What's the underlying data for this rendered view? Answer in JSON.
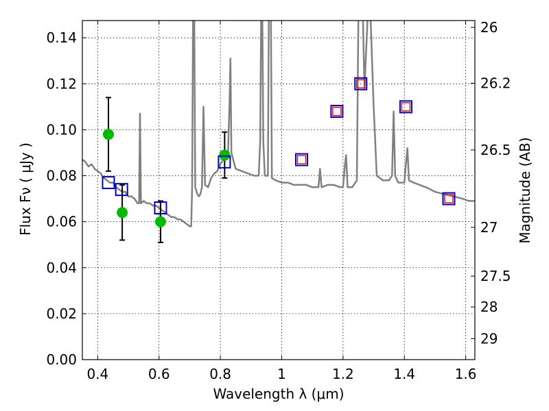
{
  "chart_data": {
    "type": "scatter",
    "xlabel": "Wavelength  λ (μm)",
    "ylabel": "Flux  Fν  ( μJy )",
    "ylabel_right": "Magnitude (AB)",
    "xlim": [
      0.35,
      1.63
    ],
    "ylim": [
      0.0,
      0.1475
    ],
    "grid": true,
    "x_ticks": [
      0.4,
      0.6,
      0.8,
      1.0,
      1.2,
      1.4,
      1.6
    ],
    "x_tick_labels": [
      "0.4",
      "0.6",
      "0.8",
      "1",
      "1.2",
      "1.4",
      "1.6"
    ],
    "y_ticks": [
      0.0,
      0.02,
      0.04,
      0.06,
      0.08,
      0.1,
      0.12,
      0.14
    ],
    "y_tick_labels": [
      "0.00",
      "0.02",
      "0.04",
      "0.06",
      "0.08",
      "0.10",
      "0.12",
      "0.14"
    ],
    "right_ticks": [
      {
        "mag": 26,
        "label": "26"
      },
      {
        "mag": 26.2,
        "label": "26.2"
      },
      {
        "mag": 26.5,
        "label": "26.5"
      },
      {
        "mag": 27,
        "label": "27"
      },
      {
        "mag": 27.5,
        "label": "27.5"
      },
      {
        "mag": 28,
        "label": "28"
      },
      {
        "mag": 29,
        "label": "29"
      }
    ],
    "series": [
      {
        "style": "line",
        "color": "#808080",
        "points": [
          [
            0.35,
            0.087
          ],
          [
            0.36,
            0.086
          ],
          [
            0.37,
            0.084
          ],
          [
            0.38,
            0.085
          ],
          [
            0.39,
            0.083
          ],
          [
            0.4,
            0.082
          ],
          [
            0.41,
            0.081
          ],
          [
            0.42,
            0.079
          ],
          [
            0.43,
            0.078
          ],
          [
            0.44,
            0.077
          ],
          [
            0.45,
            0.077
          ],
          [
            0.46,
            0.075
          ],
          [
            0.47,
            0.074
          ],
          [
            0.48,
            0.073
          ],
          [
            0.49,
            0.073
          ],
          [
            0.5,
            0.071
          ],
          [
            0.51,
            0.071
          ],
          [
            0.52,
            0.07
          ],
          [
            0.53,
            0.068
          ],
          [
            0.535,
            0.068
          ],
          [
            0.538,
            0.107
          ],
          [
            0.541,
            0.068
          ],
          [
            0.55,
            0.069
          ],
          [
            0.56,
            0.068
          ],
          [
            0.57,
            0.068
          ],
          [
            0.58,
            0.067
          ],
          [
            0.59,
            0.067
          ],
          [
            0.6,
            0.066
          ],
          [
            0.61,
            0.065
          ],
          [
            0.62,
            0.064
          ],
          [
            0.63,
            0.063
          ],
          [
            0.64,
            0.062
          ],
          [
            0.65,
            0.062
          ],
          [
            0.66,
            0.061
          ],
          [
            0.67,
            0.061
          ],
          [
            0.68,
            0.06
          ],
          [
            0.69,
            0.059
          ],
          [
            0.7,
            0.058
          ],
          [
            0.705,
            0.058
          ],
          [
            0.708,
            0.075
          ],
          [
            0.711,
            0.148
          ],
          [
            0.715,
            0.148
          ],
          [
            0.718,
            0.075
          ],
          [
            0.725,
            0.072
          ],
          [
            0.73,
            0.071
          ],
          [
            0.735,
            0.072
          ],
          [
            0.74,
            0.075
          ],
          [
            0.745,
            0.11
          ],
          [
            0.75,
            0.076
          ],
          [
            0.76,
            0.075
          ],
          [
            0.77,
            0.079
          ],
          [
            0.78,
            0.081
          ],
          [
            0.79,
            0.082
          ],
          [
            0.8,
            0.085
          ],
          [
            0.81,
            0.087
          ],
          [
            0.82,
            0.088
          ],
          [
            0.825,
            0.09
          ],
          [
            0.83,
            0.112
          ],
          [
            0.833,
            0.131
          ],
          [
            0.836,
            0.09
          ],
          [
            0.85,
            0.083
          ],
          [
            0.87,
            0.082
          ],
          [
            0.89,
            0.081
          ],
          [
            0.91,
            0.08
          ],
          [
            0.925,
            0.08
          ],
          [
            0.93,
            0.095
          ],
          [
            0.933,
            0.148
          ],
          [
            0.937,
            0.148
          ],
          [
            0.94,
            0.095
          ],
          [
            0.945,
            0.08
          ],
          [
            0.955,
            0.08
          ],
          [
            0.958,
            0.148
          ],
          [
            0.965,
            0.148
          ],
          [
            0.968,
            0.079
          ],
          [
            0.98,
            0.078
          ],
          [
            1.0,
            0.077
          ],
          [
            1.02,
            0.077
          ],
          [
            1.04,
            0.076
          ],
          [
            1.06,
            0.076
          ],
          [
            1.08,
            0.076
          ],
          [
            1.1,
            0.075
          ],
          [
            1.12,
            0.075
          ],
          [
            1.125,
            0.083
          ],
          [
            1.13,
            0.075
          ],
          [
            1.15,
            0.076
          ],
          [
            1.17,
            0.076
          ],
          [
            1.19,
            0.075
          ],
          [
            1.2,
            0.075
          ],
          [
            1.205,
            0.083
          ],
          [
            1.21,
            0.089
          ],
          [
            1.215,
            0.075
          ],
          [
            1.23,
            0.075
          ],
          [
            1.245,
            0.078
          ],
          [
            1.25,
            0.148
          ],
          [
            1.265,
            0.148
          ],
          [
            1.27,
            0.118
          ],
          [
            1.28,
            0.148
          ],
          [
            1.29,
            0.148
          ],
          [
            1.3,
            0.11
          ],
          [
            1.31,
            0.08
          ],
          [
            1.33,
            0.078
          ],
          [
            1.35,
            0.078
          ],
          [
            1.36,
            0.08
          ],
          [
            1.365,
            0.108
          ],
          [
            1.37,
            0.08
          ],
          [
            1.38,
            0.077
          ],
          [
            1.4,
            0.077
          ],
          [
            1.405,
            0.085
          ],
          [
            1.41,
            0.092
          ],
          [
            1.415,
            0.078
          ],
          [
            1.43,
            0.077
          ],
          [
            1.45,
            0.076
          ],
          [
            1.47,
            0.075
          ],
          [
            1.5,
            0.073
          ],
          [
            1.53,
            0.072
          ],
          [
            1.56,
            0.071
          ],
          [
            1.59,
            0.07
          ],
          [
            1.61,
            0.069
          ],
          [
            1.63,
            0.069
          ]
        ]
      },
      {
        "style": "circle",
        "color": "#00bb00",
        "points": [
          {
            "x": 0.435,
            "y": 0.098,
            "err": 0.016
          },
          {
            "x": 0.48,
            "y": 0.064,
            "err": 0.012
          },
          {
            "x": 0.605,
            "y": 0.06,
            "err": 0.009
          },
          {
            "x": 0.814,
            "y": 0.089,
            "err": 0.01
          }
        ]
      },
      {
        "style": "square-open",
        "color": "#0000cc",
        "points": [
          {
            "x": 0.435,
            "y": 0.077
          },
          {
            "x": 0.478,
            "y": 0.074
          },
          {
            "x": 0.605,
            "y": 0.066
          },
          {
            "x": 0.813,
            "y": 0.086
          },
          {
            "x": 1.065,
            "y": 0.087
          },
          {
            "x": 1.18,
            "y": 0.108
          },
          {
            "x": 1.258,
            "y": 0.12
          },
          {
            "x": 1.405,
            "y": 0.11
          },
          {
            "x": 1.545,
            "y": 0.07
          }
        ]
      },
      {
        "style": "square-open-small",
        "color": "#ee0000",
        "points": [
          {
            "x": 1.065,
            "y": 0.087
          },
          {
            "x": 1.18,
            "y": 0.108
          },
          {
            "x": 1.258,
            "y": 0.12
          },
          {
            "x": 1.405,
            "y": 0.11
          },
          {
            "x": 1.545,
            "y": 0.07
          }
        ]
      }
    ]
  }
}
